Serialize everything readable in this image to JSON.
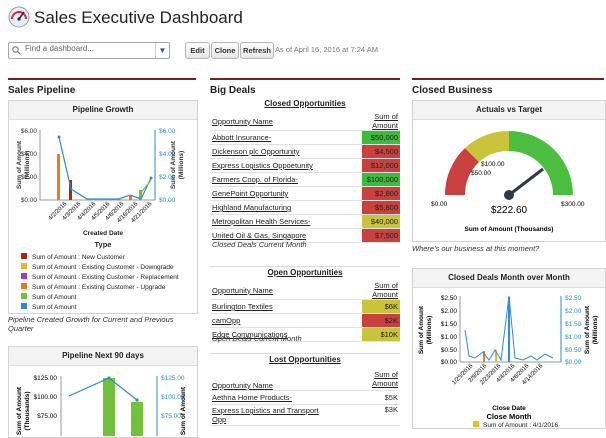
{
  "header": {
    "title": "Sales Executive Dashboard"
  },
  "toolbar": {
    "search_placeholder": "Find a dashboard...",
    "edit_label": "Edit",
    "clone_label": "Clone",
    "refresh_label": "Refresh",
    "as_of": "As of April 16, 2016 at 7:24 AM"
  },
  "columns": {
    "pipeline": "Sales Pipeline",
    "big_deals": "Big Deals",
    "closed_business": "Closed Business"
  },
  "pipeline_growth": {
    "title": "Pipeline Growth",
    "ylabel": "Sum of Amount (Millions)",
    "xlabel": "Created Date",
    "legend_title": "Type",
    "legend": [
      {
        "label": "Sum of Amount : New Customer",
        "color": "#b0270f"
      },
      {
        "label": "Sum of Amount : Existing Customer - Downgrade",
        "color": "#e8b830"
      },
      {
        "label": "Sum of Amount : Existing Customer - Replacement",
        "color": "#9b3fc4"
      },
      {
        "label": "Sum of Amount : Existing Customer - Upgrade",
        "color": "#e87c1e"
      },
      {
        "label": "Sum of Amount",
        "color": "#72c13c"
      },
      {
        "label": "Sum of Amount",
        "color": "#2e8bd6"
      }
    ],
    "caption": "Pipeline Created Growth for Current and Previous Quarter"
  },
  "pipeline_next": {
    "title": "Pipeline Next 90 days",
    "ylabel": "Sum of Amount (Thousands)"
  },
  "closed_opps": {
    "title": "Closed Opportunities",
    "col1": "Opportunity Name",
    "col2": "Sum of Amount",
    "rows": [
      {
        "name": "Abbott Insurance-",
        "amount": "$50,000",
        "color": "#3dbb3d"
      },
      {
        "name": "Dickenson plc Opportunity",
        "amount": "$4,500",
        "color": "#c8413e"
      },
      {
        "name": "Express Logistics Oppoetunity",
        "amount": "$12,000",
        "color": "#c8413e"
      },
      {
        "name": "Farmers Coop. of Florida-",
        "amount": "$100,000",
        "color": "#3dbb3d"
      },
      {
        "name": "GenePoint Opportunity",
        "amount": "$2,800",
        "color": "#c8413e"
      },
      {
        "name": "Highland Manufacturing",
        "amount": "$5,800",
        "color": "#c8413e"
      },
      {
        "name": "Metropolitan Health Services-",
        "amount": "$40,000",
        "color": "#c9c43a"
      },
      {
        "name": "United Oil & Gas, Singapore",
        "amount": "$7,500",
        "color": "#c8413e"
      }
    ],
    "caption": "Closed Deals Current Month"
  },
  "open_opps": {
    "title": "Open Opportunities",
    "col1": "Opportunity Name",
    "col2": "Sum of Amount",
    "rows": [
      {
        "name": "Burlington Textiles",
        "amount": "$6K",
        "color": "#c9c43a"
      },
      {
        "name": "camOpp",
        "amount": "$2K",
        "color": "#c8413e"
      },
      {
        "name": "Edge Communications",
        "amount": "$10K",
        "color": "#c9c43a"
      }
    ],
    "caption": "Open Deals Current Month"
  },
  "lost_opps": {
    "title": "Lost Opportunities",
    "col1": "Opportunity Name",
    "col2a": "Sum of",
    "col2b": "Amount",
    "rows": [
      {
        "name": "Aethna Home Products-",
        "amount": "$5K"
      },
      {
        "name": "Express Logistics and Transport",
        "name2": "Opp",
        "amount": "$3K"
      }
    ]
  },
  "actuals": {
    "title": "Actuals vs Target",
    "t0": "$0.00",
    "t50": "$50.00",
    "t100": "$100.00",
    "t300": "$300.00",
    "value": "$222.60",
    "label": "Sum of Amount (Thousands)",
    "caption": "Where's our business at this moment?"
  },
  "closed_month": {
    "title": "Closed Deals Month over Month",
    "ylabel": "Sum of Amount (Millions)",
    "xlabel": "Close Date",
    "legend_title": "Close Month",
    "legend_item": "Sum of Amount : 4/1/2016"
  }
}
